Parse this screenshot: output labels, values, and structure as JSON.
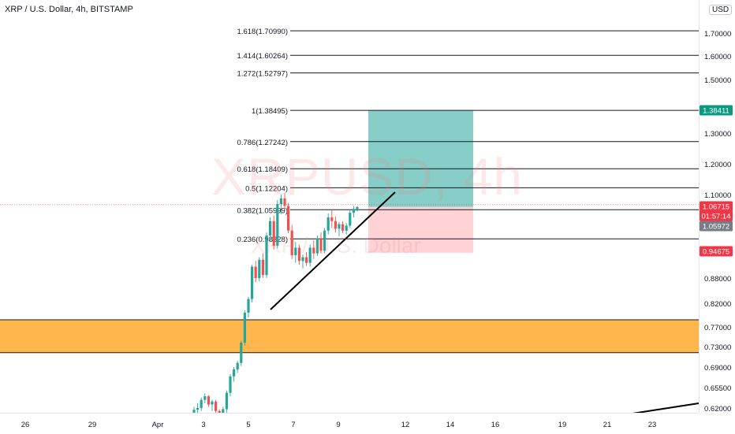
{
  "header": {
    "title": "XRP / U.S. Dollar, 4h, BITSTAMP",
    "currency": "USD"
  },
  "watermark": {
    "symbol": "XRPUSD, 4h",
    "name": "XRP / U.S. Dollar"
  },
  "colors": {
    "fib_line": "#131722",
    "up_candle": "#26a69a",
    "down_candle": "#ef5350",
    "zone_fill": "#ffb74d",
    "profit_box": "#80cbc4",
    "loss_box": "#ffcdd2",
    "trendline": "#000000"
  },
  "chart_data": {
    "type": "candlestick",
    "price_range": [
      0.6,
      1.78
    ],
    "price_ticks": [
      "1.70000",
      "1.60000",
      "1.50000",
      "1.30000",
      "1.20000",
      "1.10000",
      "0.88000",
      "0.82000",
      "0.77000",
      "0.73000",
      "0.69000",
      "0.65500",
      "0.62000"
    ],
    "price_tick_values": [
      1.7,
      1.6,
      1.5,
      1.3,
      1.2,
      1.1,
      0.88,
      0.82,
      0.77,
      0.73,
      0.69,
      0.655,
      0.62
    ],
    "time_ticks": [
      "26",
      "29",
      "Apr",
      "3",
      "5",
      "7",
      "9",
      "12",
      "14",
      "16",
      "19",
      "21",
      "23"
    ],
    "fib_levels": [
      {
        "label": "1.618(1.70990)",
        "value": 1.7099
      },
      {
        "label": "1.414(1.60264)",
        "value": 1.60264
      },
      {
        "label": "1.272(1.52797)",
        "value": 1.52797
      },
      {
        "label": "1(1.38495)",
        "value": 1.38495
      },
      {
        "label": "0.786(1.27242)",
        "value": 1.27242
      },
      {
        "label": "0.618(1.18409)",
        "value": 1.18409
      },
      {
        "label": "0.5(1.12204)",
        "value": 1.12204
      },
      {
        "label": "0.382(1.05999)",
        "value": 1.05999
      },
      {
        "label": "0.236(0.98328)",
        "value": 0.98328
      }
    ],
    "price_labels": [
      {
        "text": "1.38411",
        "value": 1.38411,
        "color": "#089981"
      },
      {
        "text": "1.06715",
        "value": 1.06715,
        "color": "#f23645"
      },
      {
        "text": "01:57:14",
        "value": 1.04,
        "color": "#f23645"
      },
      {
        "text": "1.05972",
        "value": 1.05972,
        "color": "#787b86"
      },
      {
        "text": "0.94675",
        "value": 0.94675,
        "color": "#f23645"
      }
    ],
    "zone": {
      "top": 0.785,
      "bottom": 0.718
    },
    "position": {
      "entry": 1.06715,
      "target": 1.38495,
      "stop": 0.94675
    },
    "candles": [
      [
        0.612,
        0.622,
        0.605,
        0.617
      ],
      [
        0.617,
        0.628,
        0.61,
        0.62
      ],
      [
        0.62,
        0.638,
        0.615,
        0.634
      ],
      [
        0.634,
        0.645,
        0.628,
        0.64
      ],
      [
        0.64,
        0.642,
        0.622,
        0.626
      ],
      [
        0.626,
        0.634,
        0.615,
        0.631
      ],
      [
        0.631,
        0.634,
        0.612,
        0.615
      ],
      [
        0.615,
        0.618,
        0.6,
        0.604
      ],
      [
        0.604,
        0.622,
        0.598,
        0.618
      ],
      [
        0.618,
        0.65,
        0.612,
        0.646
      ],
      [
        0.646,
        0.678,
        0.64,
        0.674
      ],
      [
        0.674,
        0.69,
        0.665,
        0.686
      ],
      [
        0.686,
        0.702,
        0.68,
        0.698
      ],
      [
        0.698,
        0.742,
        0.692,
        0.738
      ],
      [
        0.738,
        0.805,
        0.732,
        0.8
      ],
      [
        0.8,
        0.835,
        0.79,
        0.83
      ],
      [
        0.83,
        0.915,
        0.822,
        0.91
      ],
      [
        0.91,
        0.925,
        0.87,
        0.88
      ],
      [
        0.88,
        0.935,
        0.872,
        0.928
      ],
      [
        0.928,
        0.945,
        0.88,
        0.888
      ],
      [
        0.888,
        1.0,
        0.88,
        0.992
      ],
      [
        0.992,
        1.04,
        0.975,
        1.03
      ],
      [
        1.03,
        1.045,
        0.955,
        0.965
      ],
      [
        0.965,
        1.085,
        0.958,
        1.075
      ],
      [
        1.075,
        1.1,
        1.048,
        1.09
      ],
      [
        1.09,
        1.105,
        1.06,
        1.07
      ],
      [
        1.07,
        1.078,
        0.998,
        1.005
      ],
      [
        1.005,
        1.02,
        0.93,
        0.94
      ],
      [
        0.94,
        0.975,
        0.92,
        0.96
      ],
      [
        0.96,
        0.968,
        0.915,
        0.925
      ],
      [
        0.925,
        0.942,
        0.905,
        0.935
      ],
      [
        0.935,
        0.948,
        0.912,
        0.92
      ],
      [
        0.92,
        0.968,
        0.91,
        0.96
      ],
      [
        0.96,
        0.98,
        0.93,
        0.945
      ],
      [
        0.945,
        0.992,
        0.938,
        0.985
      ],
      [
        0.985,
        1.0,
        0.945,
        0.952
      ],
      [
        0.952,
        1.012,
        0.945,
        1.005
      ],
      [
        1.005,
        1.05,
        0.995,
        1.04
      ],
      [
        1.04,
        1.06,
        1.012,
        1.03
      ],
      [
        1.03,
        1.042,
        1.0,
        1.01
      ],
      [
        1.01,
        1.028,
        0.99,
        1.022
      ],
      [
        1.022,
        1.03,
        0.998,
        1.005
      ],
      [
        1.005,
        1.025,
        0.995,
        1.018
      ],
      [
        1.018,
        1.058,
        1.012,
        1.052
      ],
      [
        1.052,
        1.07,
        1.04,
        1.062
      ],
      [
        1.062,
        1.07,
        1.055,
        1.067
      ]
    ]
  }
}
